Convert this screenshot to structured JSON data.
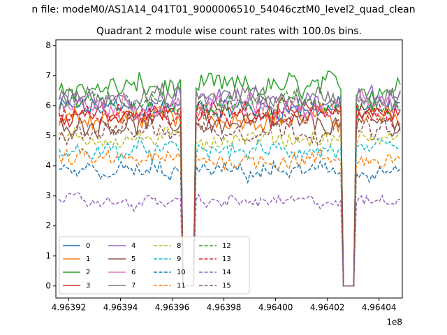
{
  "figure": {
    "suptitle": "n file: modeM0/AS1A14_041T01_9000006510_54046cztM0_level2_quad_clean"
  },
  "chart_data": {
    "type": "line",
    "title": "Quadrant 2 module wise count rates with 100.0s bins.",
    "xlabel": "",
    "ylabel": "",
    "x_offset_label": "1e8",
    "xlim": [
      4.963915,
      4.964049
    ],
    "ylim": [
      -0.4,
      8.2
    ],
    "x_ticks": [
      4.96392,
      4.96394,
      4.96396,
      4.96398,
      4.964,
      4.96402,
      4.96404
    ],
    "x_tick_labels": [
      "4.96392",
      "4.96394",
      "4.96396",
      "4.96398",
      "4.96400",
      "4.96402",
      "4.96404"
    ],
    "y_ticks": [
      0,
      1,
      2,
      3,
      4,
      5,
      6,
      7,
      8
    ],
    "y_tick_labels": [
      "0",
      "1",
      "2",
      "3",
      "4",
      "5",
      "6",
      "7",
      "8"
    ],
    "grid": false,
    "legend_position": "lower-left",
    "legend_columns": 4,
    "x_range_units_1e8": {
      "start": 4.96391622,
      "end": 4.96404781,
      "bin": 1e-06
    },
    "gaps_units_1e8": [
      [
        4.96396355,
        4.96396855
      ],
      [
        4.96402537,
        4.96403107
      ]
    ],
    "series": [
      {
        "name": "0",
        "color": "#1f77b4",
        "dash": "solid",
        "mean": 5.9,
        "spread": 0.45
      },
      {
        "name": "1",
        "color": "#ff7f0e",
        "dash": "solid",
        "mean": 5.6,
        "spread": 0.4
      },
      {
        "name": "2",
        "color": "#2ca02c",
        "dash": "solid",
        "mean": 6.6,
        "spread": 0.5
      },
      {
        "name": "3",
        "color": "#d62728",
        "dash": "solid",
        "mean": 5.8,
        "spread": 0.4
      },
      {
        "name": "4",
        "color": "#9467bd",
        "dash": "solid",
        "mean": 6.2,
        "spread": 0.45
      },
      {
        "name": "5",
        "color": "#8c564b",
        "dash": "solid",
        "mean": 5.4,
        "spread": 0.4
      },
      {
        "name": "6",
        "color": "#e377c2",
        "dash": "solid",
        "mean": 6.0,
        "spread": 0.45
      },
      {
        "name": "7",
        "color": "#7f7f7f",
        "dash": "solid",
        "mean": 6.3,
        "spread": 0.45
      },
      {
        "name": "8",
        "color": "#bcbd22",
        "dash": "dashed",
        "mean": 4.9,
        "spread": 0.35
      },
      {
        "name": "9",
        "color": "#17becf",
        "dash": "dashed",
        "mean": 4.5,
        "spread": 0.35
      },
      {
        "name": "10",
        "color": "#1f77b4",
        "dash": "dashed",
        "mean": 3.8,
        "spread": 0.35
      },
      {
        "name": "11",
        "color": "#ff7f0e",
        "dash": "dashed",
        "mean": 4.2,
        "spread": 0.35
      },
      {
        "name": "12",
        "color": "#2ca02c",
        "dash": "dashed",
        "mean": 6.1,
        "spread": 0.4
      },
      {
        "name": "13",
        "color": "#d62728",
        "dash": "dashed",
        "mean": 5.7,
        "spread": 0.4
      },
      {
        "name": "14",
        "color": "#9467bd",
        "dash": "dashed",
        "mean": 2.8,
        "spread": 0.25
      },
      {
        "name": "15",
        "color": "#8c564b",
        "dash": "dashed",
        "mean": 5.2,
        "spread": 0.4
      }
    ]
  }
}
